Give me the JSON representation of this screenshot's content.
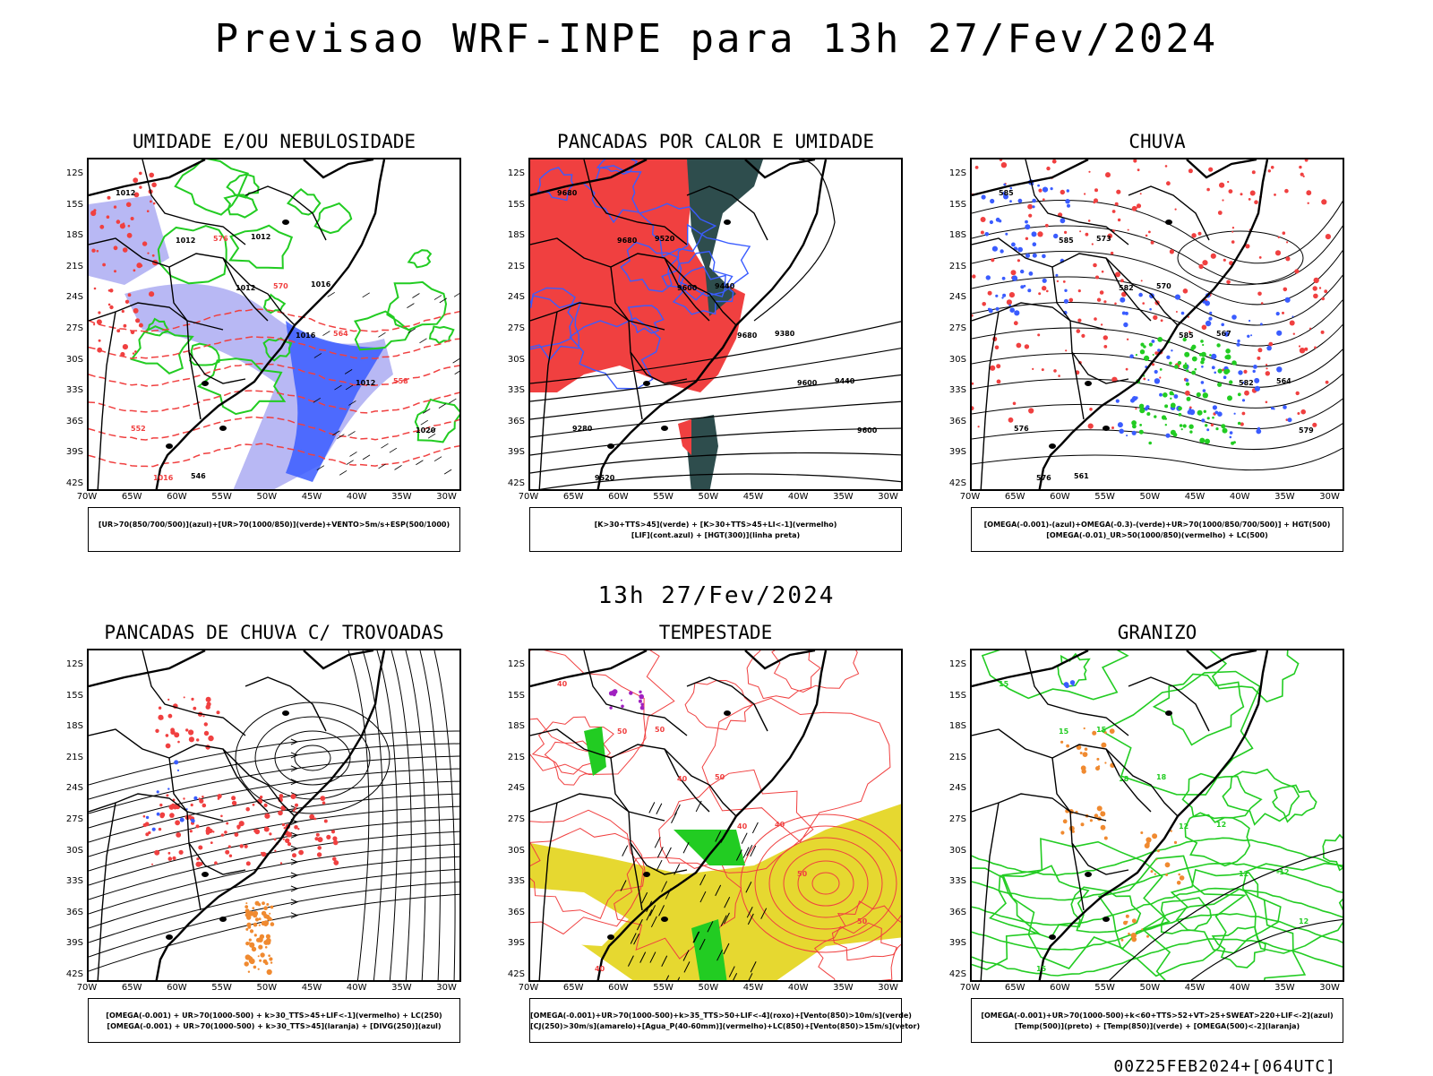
{
  "title": "Previsao WRF-INPE  para 13h 27/Fev/2024",
  "subtitle": "13h 27/Fev/2024",
  "run_label": "00Z25FEB2024+[064UTC]",
  "lat_labels": [
    "12S",
    "15S",
    "18S",
    "21S",
    "24S",
    "27S",
    "30S",
    "33S",
    "36S",
    "39S",
    "42S"
  ],
  "lon_labels": [
    "70W",
    "65W",
    "60W",
    "55W",
    "50W",
    "45W",
    "40W",
    "35W",
    "30W"
  ],
  "colors": {
    "red": "#f04040",
    "green": "#22cc22",
    "blue": "#3a5cff",
    "lavender": "#b8b8f4",
    "darkteal": "#2e4d4d",
    "yellow": "#e6d830",
    "orange": "#f08a30",
    "purple": "#a020c0"
  },
  "panels": [
    {
      "id": "umidade",
      "title": "UMIDADE E/OU NEBULOSIDADE",
      "legend": [
        "[UR>70(850/700/500)](azul)+[UR>70(1000/850)](verde)+VENTO>5m/s+ESP(500/1000)"
      ],
      "contour_labels": [
        "1012",
        "1012",
        "1012",
        "1016",
        "1012",
        "1020",
        "1016",
        "576",
        "570",
        "564",
        "558",
        "552",
        "546",
        "1012",
        "1016"
      ]
    },
    {
      "id": "pancadas_calor",
      "title": "PANCADAS POR CALOR E UMIDADE",
      "legend": [
        "[K>30+TTS>45](verde) + [K>30+TTS>45+LI<-1](vermelho)",
        "[LIF](cont.azul) + [HGT(300)](linha preta)"
      ],
      "contour_labels": [
        "9680",
        "9680",
        "9600",
        "9680",
        "9600",
        "9600",
        "9520",
        "9520",
        "9440",
        "9380",
        "9440",
        "9280"
      ]
    },
    {
      "id": "chuva",
      "title": "CHUVA",
      "legend": [
        "[OMEGA(-0.001)-(azul)+OMEGA(-0.3)-(verde)+UR>70(1000/850/700/500)] + HGT(500)",
        "[OMEGA(-0.01)_UR>50(1000/850)(vermelho) + LC(500)"
      ],
      "contour_labels": [
        "585",
        "585",
        "582",
        "585",
        "582",
        "579",
        "576",
        "573",
        "570",
        "567",
        "564",
        "576",
        "561"
      ]
    },
    {
      "id": "pancadas_trovoadas",
      "title": "PANCADAS DE CHUVA C/ TROVOADAS",
      "legend": [
        "[OMEGA(-0.001) + UR>70(1000-500) + k>30_TTS>45+LIF<-1](vermelho) + LC(250)",
        "[OMEGA(-0.001) + UR>70(1000-500) + k>30_TTS>45](laranja) + [DIVG(250)](azul)"
      ],
      "contour_labels": []
    },
    {
      "id": "tempestade",
      "title": "TEMPESTADE",
      "legend": [
        "[OMEGA(-0.001)+UR>70(1000-500)+k>35_TTS>50+LIF<-4](roxo)+[Vento(850)>10m/s](verde)",
        "[CJ(250)>30m/s](amarelo)+[Agua_P(40-60mm)](vermelho)+LC(850)+[Vento(850)>15m/s](vetor)"
      ],
      "contour_labels": [
        "40",
        "50",
        "40",
        "40",
        "50",
        "50",
        "40",
        "50",
        "50",
        "40"
      ]
    },
    {
      "id": "granizo",
      "title": "GRANIZO",
      "legend": [
        "[OMEGA(-0.001)+UR>70(1000-500)+k<60+TTS>52+VT>25+SWEAT>220+LIF<-2](azul)",
        "[Temp(500)](preto) + [Temp(850)](verde) + [OMEGA(500)<-2](laranja)"
      ],
      "contour_labels": [
        "15",
        "15",
        "18",
        "12",
        "12",
        "12",
        "15",
        "15",
        "18",
        "12",
        "-12"
      ]
    }
  ]
}
